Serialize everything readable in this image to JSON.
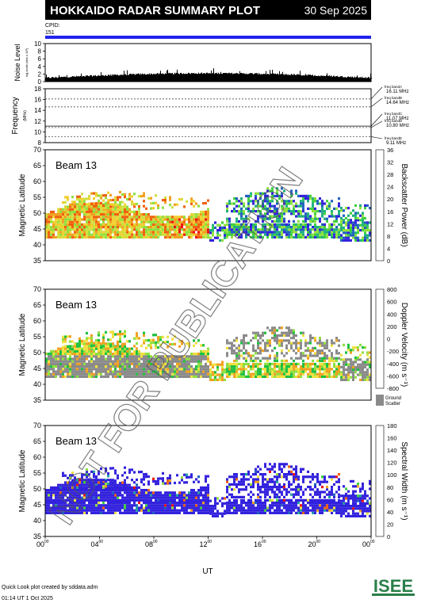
{
  "header": {
    "title": "HOKKAIDO RADAR SUMMARY PLOT",
    "date": "30 Sep 2025"
  },
  "cpid": {
    "label": "CPID:",
    "value": "151",
    "bar_color": "#2222ee"
  },
  "watermark": "NOT FOR PUBLICATION",
  "noise_panel": {
    "ylabel_main": "Noise Level",
    "ylabel_sub": "log-scale (abs x 10³)",
    "ticks": [
      "0",
      "2",
      "4",
      "6",
      "8",
      "10"
    ],
    "ylim": [
      0,
      10
    ]
  },
  "freq_panel": {
    "ylabel_main": "Frequency",
    "ylabel_sub": "(MHz)",
    "ticks": [
      "8",
      "10",
      "12",
      "14",
      "16",
      "18"
    ],
    "ylim": [
      8,
      18
    ],
    "bands": [
      {
        "name": "freq bandA",
        "value": "16.11 MHz",
        "freq": 16.11
      },
      {
        "name": "freq bandB",
        "value": "14.64 MHz",
        "freq": 14.64
      },
      {
        "name": "freq bandC",
        "value": "11.07 MHz",
        "freq": 11.07
      },
      {
        "name": "freq bandD",
        "value": "10.80 MHz",
        "freq": 10.8
      },
      {
        "name": "freq bandE",
        "value": "9.11 MHz",
        "freq": 9.11
      }
    ]
  },
  "chart_data": [
    {
      "type": "heatmap",
      "beam_label": "Beam 13",
      "ylabel": "Magnetic Latitude",
      "ylim": [
        35,
        70
      ],
      "yticks": [
        "35",
        "40",
        "45",
        "50",
        "55",
        "60",
        "65",
        "70"
      ],
      "colorbar_label": "Backscatter Power (dB)",
      "colorbar_ticks": [
        "0",
        "4",
        "8",
        "12",
        "16",
        "20",
        "24",
        "28",
        "32",
        "36"
      ],
      "colorbar_range": [
        0,
        36
      ],
      "colors": [
        "#ee1111",
        "#f06010",
        "#f0a020",
        "#f0d030",
        "#d0e040",
        "#90e040",
        "#40d040",
        "#20b080",
        "#2060c0",
        "#3322dd"
      ]
    },
    {
      "type": "heatmap",
      "beam_label": "Beam 13",
      "ylabel": "Magnetic Latitude",
      "ylim": [
        35,
        70
      ],
      "yticks": [
        "35",
        "40",
        "45",
        "50",
        "55",
        "60",
        "65",
        "70"
      ],
      "colorbar_label": "Doppler Velocity (m s⁻¹)",
      "colorbar_ticks": [
        "-800",
        "-600",
        "-400",
        "-200",
        "0",
        "200",
        "400",
        "600",
        "800"
      ],
      "colorbar_range": [
        -800,
        800
      ],
      "ground_scatter_label": [
        "Ground",
        "Scatter"
      ],
      "ground_scatter_color": "#8a8a8a",
      "colors": [
        "#ee1111",
        "#f06010",
        "#f0a020",
        "#f0e040",
        "#90e040",
        "#20c040",
        "#20a0a0",
        "#2060c0",
        "#3322dd"
      ]
    },
    {
      "type": "heatmap",
      "beam_label": "Beam 13",
      "ylabel": "Magnetic Latitude",
      "ylim": [
        35,
        70
      ],
      "yticks": [
        "35",
        "40",
        "45",
        "50",
        "55",
        "60",
        "65",
        "70"
      ],
      "colorbar_label": "Spectral Width (m s⁻¹)",
      "colorbar_ticks": [
        "0",
        "20",
        "40",
        "60",
        "80",
        "100",
        "120",
        "140",
        "160",
        "180"
      ],
      "colorbar_range": [
        0,
        180
      ],
      "colors": [
        "#3322dd",
        "#2060c0",
        "#20a0a0",
        "#40d040",
        "#90e040",
        "#f0e040",
        "#f0a020",
        "#f06010",
        "#ee1111"
      ]
    }
  ],
  "xaxis": {
    "label": "UT",
    "ticks": [
      {
        "h": "00",
        "m": "00"
      },
      {
        "h": "04",
        "m": "00"
      },
      {
        "h": "08",
        "m": "00"
      },
      {
        "h": "12",
        "m": "00"
      },
      {
        "h": "16",
        "m": "00"
      },
      {
        "h": "20",
        "m": "00"
      },
      {
        "h": "00",
        "m": "00"
      }
    ]
  },
  "footer": {
    "line1": "Quick Look plot created by sddata.adm",
    "line2": "01:14 UT 1 Oct 2025"
  },
  "logo": {
    "text": "ISEE"
  }
}
